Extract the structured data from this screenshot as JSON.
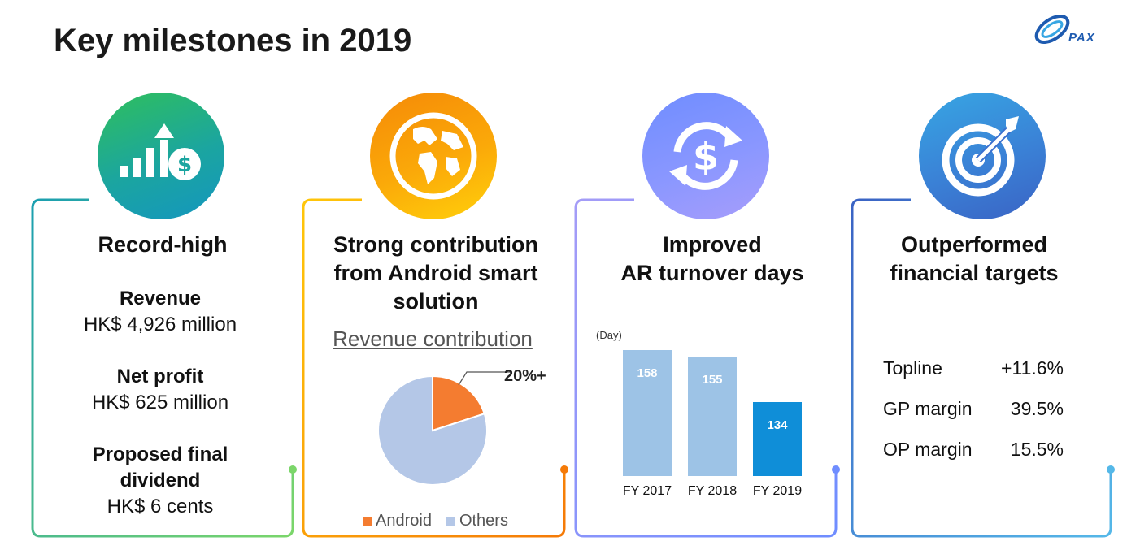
{
  "title": "Key milestones in 2019",
  "logo_text": "PAX",
  "cards": [
    {
      "heading": "Record-high",
      "icon": "bar-growth-dollar-icon",
      "items": [
        {
          "label": "Revenue",
          "value": "HK$ 4,926 million"
        },
        {
          "label": "Net profit",
          "value": "HK$ 625 million"
        },
        {
          "label": "Proposed final dividend",
          "label_lines": [
            "Proposed final",
            "dividend"
          ],
          "value": "HK$ 6 cents"
        }
      ]
    },
    {
      "heading_lines": [
        "Strong contribution",
        "from Android smart",
        "solution"
      ],
      "icon": "globe-icon",
      "subtitle": "Revenue contribution",
      "pie_label": "20%+"
    },
    {
      "heading_lines": [
        "Improved",
        "AR turnover days"
      ],
      "icon": "dollar-cycle-icon",
      "unit": "(Day)"
    },
    {
      "heading_lines": [
        "Outperformed",
        "financial targets"
      ],
      "icon": "target-icon",
      "metrics": [
        {
          "label": "Topline",
          "value": "+11.6%"
        },
        {
          "label": "GP margin",
          "value": "39.5%"
        },
        {
          "label": "OP margin",
          "value": "15.5%"
        }
      ]
    }
  ],
  "chart_data": [
    {
      "type": "pie",
      "title": "Revenue contribution",
      "labels": [
        "Android",
        "Others"
      ],
      "values": [
        20,
        80
      ],
      "annotation": "20%+",
      "colors": [
        "#f47c30",
        "#b4c7e7"
      ],
      "legend": "bottom"
    },
    {
      "type": "bar",
      "categories": [
        "FY 2017",
        "FY 2018",
        "FY 2019"
      ],
      "values": [
        158,
        155,
        134
      ],
      "ylabel": "(Day)",
      "colors": [
        "#9dc3e6",
        "#9dc3e6",
        "#0f8ed8"
      ],
      "ylim": [
        100,
        160
      ],
      "grid": false
    }
  ],
  "colors": {
    "card1": "#2db87d",
    "card2": "#f59f12",
    "card3": "#8c9bff",
    "card4": "#3a7fd5"
  }
}
